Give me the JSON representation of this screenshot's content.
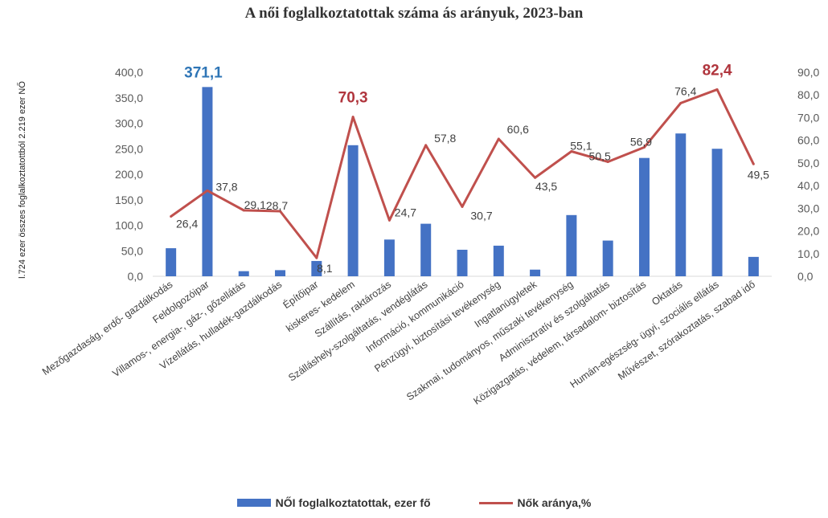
{
  "chart_data": {
    "type": "bar",
    "title": "A női foglalkoztatottak száma ás arányuk, 2023-ban",
    "ylabel": "l.724 ezer összes foglalkoztatottból 2.219 ezer NŐ",
    "categories": [
      "Mezőgazdaság, erdő- gazdálkodás",
      "Feldolgozóipar",
      "Villamos-, energia-, gáz-, gőzellátás",
      "Vízellátás, hulladék-gazdálkodás",
      "Építőipar",
      "kiskeres- kedelem",
      "Szállítás, raktározás",
      "Szálláshely-szolgáltatás, vendéglátás",
      "Információ, kommunikáció",
      "Pénzügyi, biztosítási tevékenység",
      "Ingatlanügyletek",
      "Szakmai, tudományos, műszaki tevékenység",
      "Adminisztratív és szolgáltatás",
      "Közigazgatás, védelem, társadalom- biztosítás",
      "Oktatás",
      "Humán-egészség- ügyi, szociális ellátás",
      "Művészet, szórakoztatás, szabad idő"
    ],
    "series": [
      {
        "name": "NŐI foglalkoztatottak, ezer fő",
        "kind": "bar",
        "axis": "left",
        "color": "#4472c4",
        "values": [
          55,
          371.1,
          10,
          12,
          30,
          257,
          72,
          103,
          52,
          60,
          13,
          120,
          70,
          232,
          280,
          250,
          38
        ]
      },
      {
        "name": "Nők aránya,%",
        "kind": "line",
        "axis": "right",
        "color": "#c0504d",
        "values": [
          26.4,
          37.8,
          29.1,
          28.7,
          8.1,
          70.3,
          24.7,
          57.8,
          30.7,
          60.6,
          43.5,
          55.1,
          50.5,
          56.9,
          76.4,
          82.4,
          49.5
        ]
      }
    ],
    "ylim": [
      0,
      400
    ],
    "y_ticks": [
      "0,0",
      "50,0",
      "100,0",
      "150,0",
      "200,0",
      "250,0",
      "300,0",
      "350,0",
      "400,0"
    ],
    "y2lim": [
      0,
      90
    ],
    "y2_ticks": [
      "0,0",
      "10,0",
      "20,0",
      "30,0",
      "40,0",
      "50,0",
      "60,0",
      "70,0",
      "80,0",
      "90,0"
    ],
    "bar_labels": [
      {
        "index": 1,
        "text": "371,1"
      }
    ],
    "line_labels": [
      "26,4",
      "37,8",
      "29,1",
      "28,7",
      "8,1",
      "70,3",
      "24,7",
      "57,8",
      "30,7",
      "60,6",
      "43,5",
      "55,1",
      "50,5",
      "56,9",
      "76,4",
      "82,4",
      "49,5"
    ],
    "highlighted_line_labels": [
      5,
      15
    ],
    "grid": false,
    "legend_position": "bottom"
  }
}
